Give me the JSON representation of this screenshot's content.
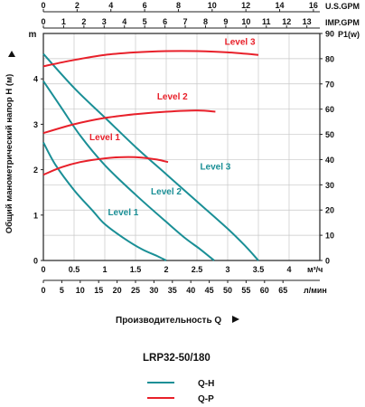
{
  "chart_data": {
    "type": "line",
    "top_axes": [
      {
        "unit": "U.S.GPM",
        "ticks": [
          0,
          2,
          4,
          6,
          8,
          10,
          12,
          14,
          16
        ],
        "range": [
          0,
          16.38
        ]
      },
      {
        "unit": "IMP.GPM",
        "ticks": [
          0,
          1,
          2,
          3,
          4,
          5,
          6,
          7,
          8,
          9,
          10,
          11,
          12,
          13
        ],
        "range": [
          0,
          13.64
        ]
      }
    ],
    "bottom_axes": [
      {
        "unit": "м³/ч",
        "ticks": [
          "0",
          "0.5",
          "1",
          "1.5",
          "2",
          "2.5",
          "3",
          "3.5",
          "4"
        ],
        "range": [
          0,
          4.5
        ]
      },
      {
        "unit": "л/мин",
        "ticks": [
          "0",
          "5",
          "10",
          "15",
          "20",
          "25",
          "30",
          "35",
          "40",
          "45",
          "50",
          "55",
          "60",
          "65"
        ],
        "range": [
          0,
          75
        ]
      }
    ],
    "left_axis": {
      "unit": "m",
      "label": "Общий манометрический напор H (м)",
      "ticks": [
        0,
        1,
        2,
        3,
        4
      ],
      "range": [
        0,
        5
      ]
    },
    "right_axis": {
      "unit": "P1(w)",
      "ticks": [
        0,
        10,
        20,
        30,
        40,
        50,
        60,
        70,
        80,
        90
      ],
      "range": [
        0,
        90
      ]
    },
    "xlabel": "Производительность Q",
    "model": "LRP32-50/180",
    "legend": [
      {
        "label": "Q-H",
        "color": "#1a8f96"
      },
      {
        "label": "Q-P",
        "color": "#e8202a"
      }
    ],
    "qh_series": [
      {
        "name": "Level 1",
        "x": [
          0,
          0.2,
          0.5,
          0.8,
          1.0,
          1.3,
          1.6,
          1.85,
          2.0
        ],
        "y": [
          2.6,
          2.1,
          1.55,
          1.1,
          0.8,
          0.5,
          0.25,
          0.1,
          0
        ]
      },
      {
        "name": "Level 2",
        "x": [
          0,
          0.3,
          0.6,
          1.0,
          1.5,
          2.0,
          2.3,
          2.55,
          2.78
        ],
        "y": [
          3.95,
          3.35,
          2.75,
          2.1,
          1.45,
          0.85,
          0.5,
          0.25,
          0
        ]
      },
      {
        "name": "Level 3",
        "x": [
          0,
          0.5,
          1.0,
          1.5,
          2.0,
          2.5,
          3.0,
          3.3,
          3.5
        ],
        "y": [
          4.55,
          3.8,
          3.15,
          2.5,
          1.9,
          1.3,
          0.7,
          0.3,
          0
        ]
      }
    ],
    "qp_series": [
      {
        "name": "Level 1",
        "x": [
          0,
          0.3,
          0.6,
          1.0,
          1.3,
          1.6,
          1.85,
          2.03
        ],
        "y": [
          34,
          37,
          39,
          40.5,
          41,
          40.8,
          40,
          39
        ]
      },
      {
        "name": "Level 2",
        "x": [
          0,
          0.5,
          1.0,
          1.5,
          2.0,
          2.5,
          2.8
        ],
        "y": [
          50.5,
          54,
          56.5,
          58,
          59,
          59.5,
          59
        ]
      },
      {
        "name": "Level 3",
        "x": [
          0,
          0.5,
          1.0,
          1.5,
          2.0,
          2.5,
          3.0,
          3.5
        ],
        "y": [
          77,
          79.5,
          81.5,
          82.5,
          83,
          83,
          82.5,
          81.5
        ]
      }
    ],
    "curve_labels": [
      {
        "text": "Level 1",
        "curve": "qh",
        "x": 1.3,
        "y": 1.0
      },
      {
        "text": "Level 2",
        "curve": "qh",
        "x": 2.0,
        "y": 1.45
      },
      {
        "text": "Level 3",
        "curve": "qh",
        "x": 2.8,
        "y": 2.0
      },
      {
        "text": "Level 1",
        "curve": "qp",
        "x": 1.0,
        "y": 2.65
      },
      {
        "text": "Level 2",
        "curve": "qp",
        "x": 2.1,
        "y": 3.55
      },
      {
        "text": "Level 3",
        "curve": "qp",
        "x": 3.2,
        "y": 4.75
      }
    ],
    "grid": true
  }
}
